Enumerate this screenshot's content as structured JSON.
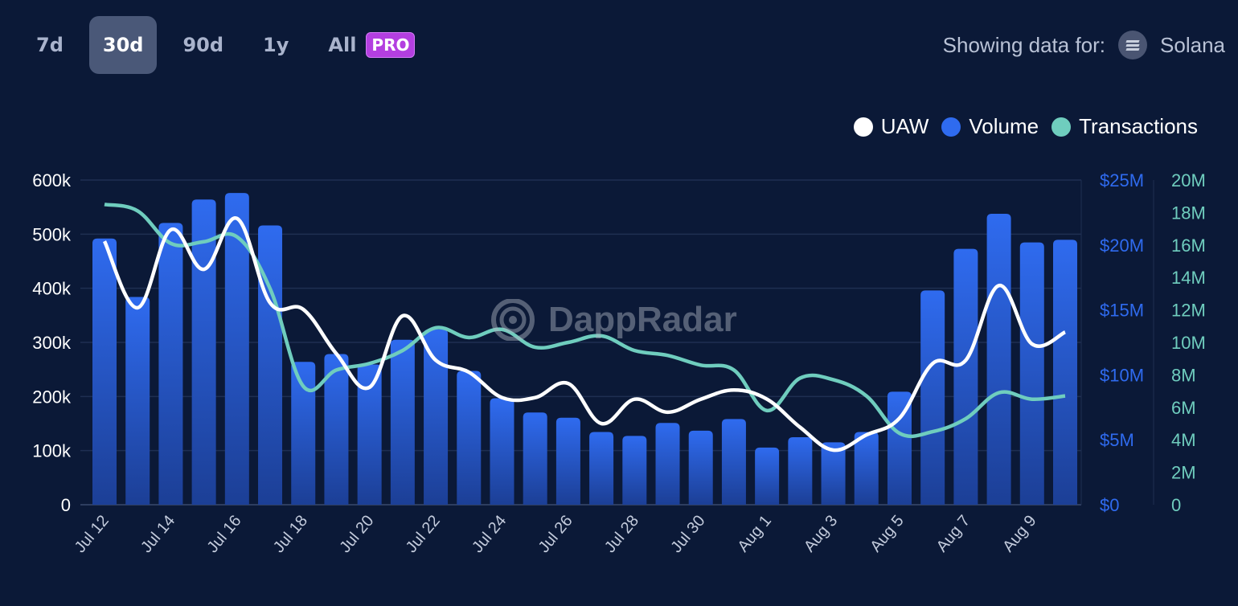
{
  "ranges": [
    {
      "label": "7d",
      "active": false
    },
    {
      "label": "30d",
      "active": true
    },
    {
      "label": "90d",
      "active": false
    },
    {
      "label": "1y",
      "active": false
    },
    {
      "label": "All",
      "active": false
    }
  ],
  "pro_badge": "PRO",
  "showing": {
    "label": "Showing data for:",
    "chain": "Solana",
    "icon": "solana-icon"
  },
  "watermark": "DappRadar",
  "colors": {
    "background": "#0b1937",
    "uaw": "#ffffff",
    "volume": "#2f6bef",
    "transactions": "#6fcdbe"
  },
  "chart_data": {
    "type": "bar+line",
    "legend_position": "top-right",
    "grid": true,
    "categories": [
      "Jul 12",
      "Jul 13",
      "Jul 14",
      "Jul 15",
      "Jul 16",
      "Jul 17",
      "Jul 18",
      "Jul 19",
      "Jul 20",
      "Jul 21",
      "Jul 22",
      "Jul 23",
      "Jul 24",
      "Jul 25",
      "Jul 26",
      "Jul 27",
      "Jul 28",
      "Jul 29",
      "Jul 30",
      "Jul 31",
      "Aug 1",
      "Aug 2",
      "Aug 3",
      "Aug 4",
      "Aug 5",
      "Aug 6",
      "Aug 7",
      "Aug 8",
      "Aug 9",
      "Aug 10"
    ],
    "x_tick_labels": [
      "Jul 12",
      "Jul 14",
      "Jul 16",
      "Jul 18",
      "Jul 20",
      "Jul 22",
      "Jul 24",
      "Jul 26",
      "Jul 28",
      "Jul 30",
      "Aug 1",
      "Aug 3",
      "Aug 5",
      "Aug 7",
      "Aug 9"
    ],
    "axes": {
      "left": {
        "series": "UAW",
        "ylim": [
          0,
          600000
        ],
        "ticks": [
          "0",
          "100k",
          "200k",
          "300k",
          "400k",
          "500k",
          "600k"
        ]
      },
      "right_volume": {
        "series": "Volume",
        "ylim": [
          0,
          25000000
        ],
        "ticks": [
          "$0",
          "$5M",
          "$10M",
          "$15M",
          "$20M",
          "$25M"
        ]
      },
      "right_transactions": {
        "series": "Transactions",
        "ylim": [
          0,
          20000000
        ],
        "ticks": [
          "0",
          "2M",
          "4M",
          "6M",
          "8M",
          "10M",
          "12M",
          "14M",
          "16M",
          "18M",
          "20M"
        ]
      }
    },
    "series": [
      {
        "name": "UAW",
        "type": "line",
        "axis": "left",
        "values": [
          487000,
          364000,
          508000,
          435000,
          529000,
          373000,
          361000,
          279000,
          217000,
          349000,
          267000,
          245000,
          198000,
          198000,
          224000,
          150000,
          195000,
          171000,
          195000,
          212000,
          195000,
          143000,
          101000,
          129000,
          160000,
          261000,
          267000,
          405000,
          297000,
          319000
        ]
      },
      {
        "name": "Volume",
        "type": "bar",
        "axis": "right_volume",
        "values": [
          20.5,
          16.0,
          21.7,
          23.5,
          24.0,
          21.5,
          11.0,
          11.6,
          10.8,
          12.7,
          13.5,
          10.3,
          8.2,
          7.1,
          6.7,
          5.6,
          5.3,
          6.3,
          5.7,
          6.6,
          4.4,
          5.2,
          4.8,
          5.6,
          8.7,
          16.5,
          19.7,
          22.4,
          20.2,
          20.4
        ],
        "unit": "$M"
      },
      {
        "name": "Transactions",
        "type": "line",
        "axis": "right_transactions",
        "values": [
          18.5,
          18.1,
          16.1,
          16.2,
          16.5,
          13.3,
          7.3,
          8.3,
          8.7,
          9.5,
          10.9,
          10.3,
          10.8,
          9.7,
          10.0,
          10.4,
          9.5,
          9.2,
          8.6,
          8.3,
          5.8,
          7.8,
          7.7,
          6.7,
          4.4,
          4.5,
          5.3,
          6.9,
          6.5,
          6.7
        ],
        "unit": "M"
      }
    ]
  }
}
